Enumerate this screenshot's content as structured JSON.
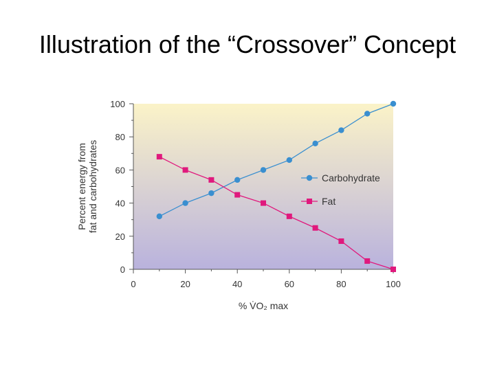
{
  "slide": {
    "title": "Illustration of the “Crossover” Concept"
  },
  "colors": {
    "carbohydrate": "#3a8fd0",
    "fat": "#e0197d",
    "bg_top": "#fbf3c8",
    "bg_bottom": "#b9b2dd",
    "axis": "#555555"
  },
  "chart_data": {
    "type": "line",
    "xlabel": "% V̇O₂ max",
    "ylabel_line1": "Percent energy from",
    "ylabel_line2": "fat and carbohydrates",
    "xlim": [
      0,
      100
    ],
    "ylim": [
      0,
      100
    ],
    "x_ticks": [
      0,
      20,
      40,
      60,
      80,
      100
    ],
    "y_ticks": [
      0,
      20,
      40,
      60,
      80,
      100
    ],
    "legend_position": "right-middle",
    "grid": false,
    "series": [
      {
        "name": "Carbohydrate",
        "marker": "circle",
        "x": [
          10,
          20,
          30,
          40,
          50,
          60,
          70,
          80,
          90,
          100
        ],
        "y": [
          32,
          40,
          46,
          54,
          60,
          66,
          76,
          84,
          94,
          100
        ]
      },
      {
        "name": "Fat",
        "marker": "square",
        "x": [
          10,
          20,
          30,
          40,
          50,
          60,
          70,
          80,
          90,
          100
        ],
        "y": [
          68,
          60,
          54,
          45,
          40,
          32,
          25,
          17,
          5,
          0
        ]
      }
    ]
  }
}
